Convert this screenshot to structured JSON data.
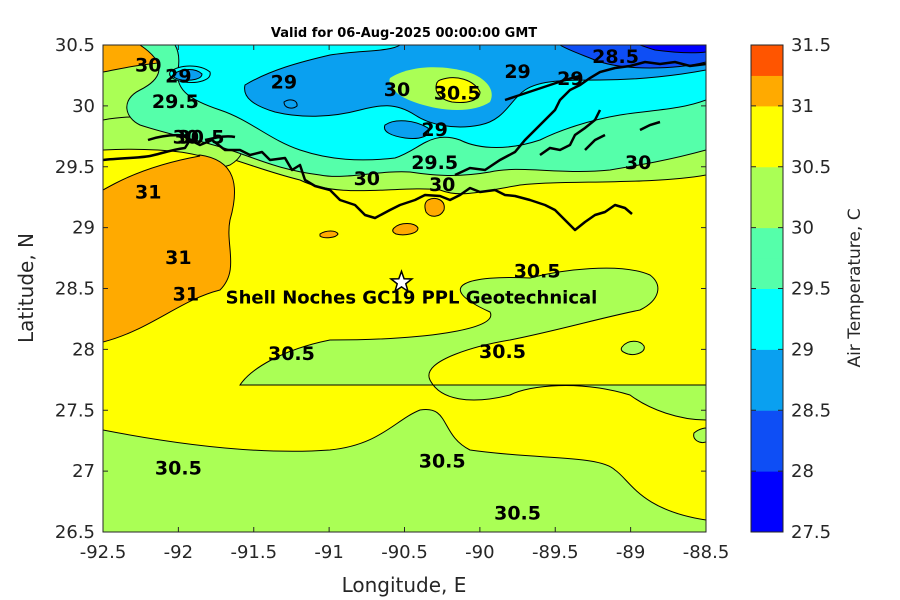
{
  "chart_data": {
    "type": "heatmap",
    "title": "Valid for 06-Aug-2025 00:00:00 GMT",
    "xlabel": "Longitude, E",
    "ylabel": "Latitude, N",
    "xlim": [
      -92.5,
      -88.5
    ],
    "ylim": [
      26.5,
      30.5
    ],
    "xticks": [
      "-92.5",
      "-92",
      "-91.5",
      "-91",
      "-90.5",
      "-90",
      "-89.5",
      "-89",
      "-88.5"
    ],
    "yticks": [
      "30.5",
      "30",
      "29.5",
      "29",
      "28.5",
      "28",
      "27.5",
      "27",
      "26.5"
    ],
    "colorbar": {
      "label": "Air Temperature, C",
      "ticks": [
        "31.5",
        "31",
        "30.5",
        "30",
        "29.5",
        "29",
        "28.5",
        "28",
        "27.5"
      ],
      "levels": [
        {
          "min": 27.5,
          "max": 27.75,
          "color": "#0000ff"
        },
        {
          "min": 27.75,
          "max": 28.0,
          "color": "#0000ff"
        },
        {
          "min": 28.0,
          "max": 28.25,
          "color": "#0e4ef5"
        },
        {
          "min": 28.25,
          "max": 28.5,
          "color": "#0e4ef5"
        },
        {
          "min": 28.5,
          "max": 28.75,
          "color": "#0aa0f0"
        },
        {
          "min": 28.75,
          "max": 29.0,
          "color": "#0aa0f0"
        },
        {
          "min": 29.0,
          "max": 29.25,
          "color": "#00ffff"
        },
        {
          "min": 29.25,
          "max": 29.5,
          "color": "#00ffff"
        },
        {
          "min": 29.5,
          "max": 29.75,
          "color": "#55ffaa"
        },
        {
          "min": 29.75,
          "max": 30.0,
          "color": "#55ffaa"
        },
        {
          "min": 30.0,
          "max": 30.25,
          "color": "#aaff55"
        },
        {
          "min": 30.25,
          "max": 30.5,
          "color": "#aaff55"
        },
        {
          "min": 30.5,
          "max": 30.75,
          "color": "#ffff00"
        },
        {
          "min": 30.75,
          "max": 31.0,
          "color": "#ffff00"
        },
        {
          "min": 31.0,
          "max": 31.25,
          "color": "#ffaa00"
        },
        {
          "min": 31.25,
          "max": 31.5,
          "color": "#ff5500"
        }
      ]
    },
    "site": {
      "name": "Shell Noches   GC19 PPL  Geotechnical",
      "lon": -90.52,
      "lat": 28.55,
      "marker": "star"
    },
    "contour_labels": [
      {
        "text": "30",
        "lon": -92.2,
        "lat": 30.33
      },
      {
        "text": "29",
        "lon": -92.0,
        "lat": 30.24
      },
      {
        "text": "29.5",
        "lon": -92.02,
        "lat": 30.03
      },
      {
        "text": "29",
        "lon": -91.3,
        "lat": 30.19
      },
      {
        "text": "30.5",
        "lon": -91.85,
        "lat": 29.74
      },
      {
        "text": "30",
        "lon": -91.95,
        "lat": 29.74
      },
      {
        "text": "30",
        "lon": -90.55,
        "lat": 30.13
      },
      {
        "text": "30.5",
        "lon": -90.15,
        "lat": 30.1
      },
      {
        "text": "29",
        "lon": -90.3,
        "lat": 29.8
      },
      {
        "text": "29",
        "lon": -89.75,
        "lat": 30.28
      },
      {
        "text": "29",
        "lon": -89.4,
        "lat": 30.22
      },
      {
        "text": "28.5",
        "lon": -89.1,
        "lat": 30.4
      },
      {
        "text": "29.5",
        "lon": -90.3,
        "lat": 29.53
      },
      {
        "text": "30",
        "lon": -90.75,
        "lat": 29.4
      },
      {
        "text": "30",
        "lon": -90.25,
        "lat": 29.35
      },
      {
        "text": "30",
        "lon": -88.95,
        "lat": 29.53
      },
      {
        "text": "31",
        "lon": -92.2,
        "lat": 29.29
      },
      {
        "text": "31",
        "lon": -92.0,
        "lat": 28.75
      },
      {
        "text": "31",
        "lon": -91.95,
        "lat": 28.45
      },
      {
        "text": "30.5",
        "lon": -89.62,
        "lat": 28.64
      },
      {
        "text": "30.5",
        "lon": -89.85,
        "lat": 27.98
      },
      {
        "text": "30.5",
        "lon": -91.25,
        "lat": 27.96
      },
      {
        "text": "30.5",
        "lon": -92.0,
        "lat": 27.02
      },
      {
        "text": "30.5",
        "lon": -90.25,
        "lat": 27.08
      },
      {
        "text": "30.5",
        "lon": -89.75,
        "lat": 26.65
      }
    ]
  }
}
